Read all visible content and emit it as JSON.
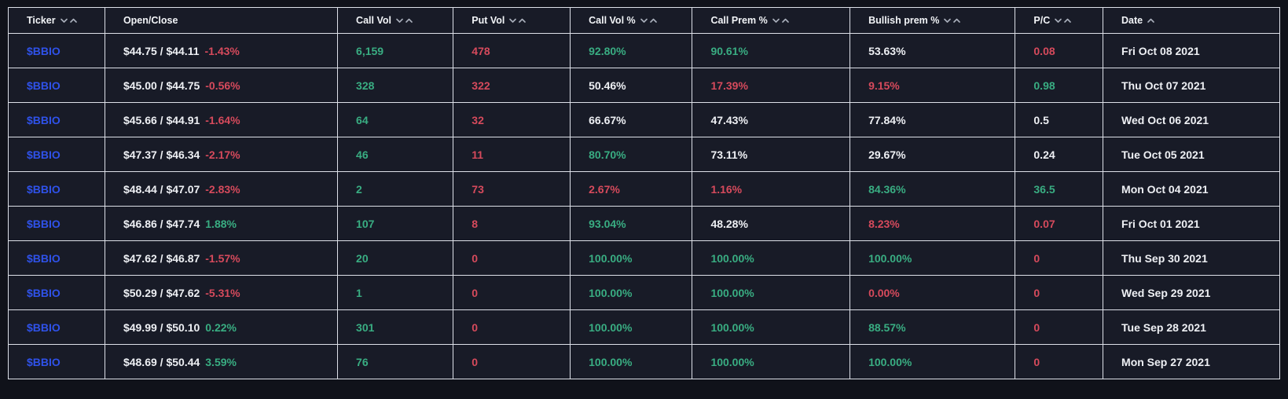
{
  "colors": {
    "green": "#39ad82",
    "red": "#d64a5c",
    "blue": "#2f52ea",
    "white": "#eef0f4",
    "cell_background": "#181b27",
    "page_background": "#10121a",
    "border": "#dde0e8"
  },
  "table": {
    "columns": [
      {
        "id": "ticker",
        "label": "Ticker",
        "sort_icons": [
          "chevron-down-icon",
          "chevron-up-icon"
        ],
        "width": "7.6%"
      },
      {
        "id": "open_close",
        "label": "Open/Close",
        "sort_icons": [],
        "width": "18.3%"
      },
      {
        "id": "call_vol",
        "label": "Call Vol",
        "sort_icons": [
          "chevron-down-icon",
          "chevron-up-icon"
        ],
        "width": "9.1%"
      },
      {
        "id": "put_vol",
        "label": "Put Vol",
        "sort_icons": [
          "chevron-down-icon",
          "chevron-up-icon"
        ],
        "width": "9.2%"
      },
      {
        "id": "call_vol_pct",
        "label": "Call Vol %",
        "sort_icons": [
          "chevron-down-icon",
          "chevron-up-icon"
        ],
        "width": "9.6%"
      },
      {
        "id": "call_prem_pct",
        "label": "Call Prem %",
        "sort_icons": [
          "chevron-down-icon",
          "chevron-up-icon"
        ],
        "width": "12.4%"
      },
      {
        "id": "bullish_prem_pct",
        "label": "Bullish prem %",
        "sort_icons": [
          "chevron-down-icon",
          "chevron-up-icon"
        ],
        "width": "13.0%"
      },
      {
        "id": "pc",
        "label": "P/C",
        "sort_icons": [
          "chevron-down-icon",
          "chevron-up-icon"
        ],
        "width": "6.9%"
      },
      {
        "id": "date",
        "label": "Date",
        "sort_icons": [
          "chevron-up-icon"
        ],
        "width": "13.9%"
      }
    ],
    "rows": [
      {
        "cells": [
          {
            "parts": [
              {
                "text": "$BBIO",
                "color": "blue"
              }
            ]
          },
          {
            "parts": [
              {
                "text": "$44.75 / $44.11",
                "color": "white"
              },
              {
                "text": "-1.43%",
                "color": "red"
              }
            ]
          },
          {
            "parts": [
              {
                "text": "6,159",
                "color": "green"
              }
            ]
          },
          {
            "parts": [
              {
                "text": "478",
                "color": "red"
              }
            ]
          },
          {
            "parts": [
              {
                "text": "92.80%",
                "color": "green"
              }
            ]
          },
          {
            "parts": [
              {
                "text": "90.61%",
                "color": "green"
              }
            ]
          },
          {
            "parts": [
              {
                "text": "53.63%",
                "color": "white"
              }
            ]
          },
          {
            "parts": [
              {
                "text": "0.08",
                "color": "red"
              }
            ]
          },
          {
            "parts": [
              {
                "text": "Fri Oct 08 2021",
                "color": "white"
              }
            ]
          }
        ]
      },
      {
        "cells": [
          {
            "parts": [
              {
                "text": "$BBIO",
                "color": "blue"
              }
            ]
          },
          {
            "parts": [
              {
                "text": "$45.00 / $44.75",
                "color": "white"
              },
              {
                "text": "-0.56%",
                "color": "red"
              }
            ]
          },
          {
            "parts": [
              {
                "text": "328",
                "color": "green"
              }
            ]
          },
          {
            "parts": [
              {
                "text": "322",
                "color": "red"
              }
            ]
          },
          {
            "parts": [
              {
                "text": "50.46%",
                "color": "white"
              }
            ]
          },
          {
            "parts": [
              {
                "text": "17.39%",
                "color": "red"
              }
            ]
          },
          {
            "parts": [
              {
                "text": "9.15%",
                "color": "red"
              }
            ]
          },
          {
            "parts": [
              {
                "text": "0.98",
                "color": "green"
              }
            ]
          },
          {
            "parts": [
              {
                "text": "Thu Oct 07 2021",
                "color": "white"
              }
            ]
          }
        ]
      },
      {
        "cells": [
          {
            "parts": [
              {
                "text": "$BBIO",
                "color": "blue"
              }
            ]
          },
          {
            "parts": [
              {
                "text": "$45.66 / $44.91",
                "color": "white"
              },
              {
                "text": "-1.64%",
                "color": "red"
              }
            ]
          },
          {
            "parts": [
              {
                "text": "64",
                "color": "green"
              }
            ]
          },
          {
            "parts": [
              {
                "text": "32",
                "color": "red"
              }
            ]
          },
          {
            "parts": [
              {
                "text": "66.67%",
                "color": "white"
              }
            ]
          },
          {
            "parts": [
              {
                "text": "47.43%",
                "color": "white"
              }
            ]
          },
          {
            "parts": [
              {
                "text": "77.84%",
                "color": "white"
              }
            ]
          },
          {
            "parts": [
              {
                "text": "0.5",
                "color": "white"
              }
            ]
          },
          {
            "parts": [
              {
                "text": "Wed Oct 06 2021",
                "color": "white"
              }
            ]
          }
        ]
      },
      {
        "cells": [
          {
            "parts": [
              {
                "text": "$BBIO",
                "color": "blue"
              }
            ]
          },
          {
            "parts": [
              {
                "text": "$47.37 / $46.34",
                "color": "white"
              },
              {
                "text": "-2.17%",
                "color": "red"
              }
            ]
          },
          {
            "parts": [
              {
                "text": "46",
                "color": "green"
              }
            ]
          },
          {
            "parts": [
              {
                "text": "11",
                "color": "red"
              }
            ]
          },
          {
            "parts": [
              {
                "text": "80.70%",
                "color": "green"
              }
            ]
          },
          {
            "parts": [
              {
                "text": "73.11%",
                "color": "white"
              }
            ]
          },
          {
            "parts": [
              {
                "text": "29.67%",
                "color": "white"
              }
            ]
          },
          {
            "parts": [
              {
                "text": "0.24",
                "color": "white"
              }
            ]
          },
          {
            "parts": [
              {
                "text": "Tue Oct 05 2021",
                "color": "white"
              }
            ]
          }
        ]
      },
      {
        "cells": [
          {
            "parts": [
              {
                "text": "$BBIO",
                "color": "blue"
              }
            ]
          },
          {
            "parts": [
              {
                "text": "$48.44 / $47.07",
                "color": "white"
              },
              {
                "text": "-2.83%",
                "color": "red"
              }
            ]
          },
          {
            "parts": [
              {
                "text": "2",
                "color": "green"
              }
            ]
          },
          {
            "parts": [
              {
                "text": "73",
                "color": "red"
              }
            ]
          },
          {
            "parts": [
              {
                "text": "2.67%",
                "color": "red"
              }
            ]
          },
          {
            "parts": [
              {
                "text": "1.16%",
                "color": "red"
              }
            ]
          },
          {
            "parts": [
              {
                "text": "84.36%",
                "color": "green"
              }
            ]
          },
          {
            "parts": [
              {
                "text": "36.5",
                "color": "green"
              }
            ]
          },
          {
            "parts": [
              {
                "text": "Mon Oct 04 2021",
                "color": "white"
              }
            ]
          }
        ]
      },
      {
        "cells": [
          {
            "parts": [
              {
                "text": "$BBIO",
                "color": "blue"
              }
            ]
          },
          {
            "parts": [
              {
                "text": "$46.86 / $47.74",
                "color": "white"
              },
              {
                "text": "1.88%",
                "color": "green"
              }
            ]
          },
          {
            "parts": [
              {
                "text": "107",
                "color": "green"
              }
            ]
          },
          {
            "parts": [
              {
                "text": "8",
                "color": "red"
              }
            ]
          },
          {
            "parts": [
              {
                "text": "93.04%",
                "color": "green"
              }
            ]
          },
          {
            "parts": [
              {
                "text": "48.28%",
                "color": "white"
              }
            ]
          },
          {
            "parts": [
              {
                "text": "8.23%",
                "color": "red"
              }
            ]
          },
          {
            "parts": [
              {
                "text": "0.07",
                "color": "red"
              }
            ]
          },
          {
            "parts": [
              {
                "text": "Fri Oct 01 2021",
                "color": "white"
              }
            ]
          }
        ]
      },
      {
        "cells": [
          {
            "parts": [
              {
                "text": "$BBIO",
                "color": "blue"
              }
            ]
          },
          {
            "parts": [
              {
                "text": "$47.62 / $46.87",
                "color": "white"
              },
              {
                "text": "-1.57%",
                "color": "red"
              }
            ]
          },
          {
            "parts": [
              {
                "text": "20",
                "color": "green"
              }
            ]
          },
          {
            "parts": [
              {
                "text": "0",
                "color": "red"
              }
            ]
          },
          {
            "parts": [
              {
                "text": "100.00%",
                "color": "green"
              }
            ]
          },
          {
            "parts": [
              {
                "text": "100.00%",
                "color": "green"
              }
            ]
          },
          {
            "parts": [
              {
                "text": "100.00%",
                "color": "green"
              }
            ]
          },
          {
            "parts": [
              {
                "text": "0",
                "color": "red"
              }
            ]
          },
          {
            "parts": [
              {
                "text": "Thu Sep 30 2021",
                "color": "white"
              }
            ]
          }
        ]
      },
      {
        "cells": [
          {
            "parts": [
              {
                "text": "$BBIO",
                "color": "blue"
              }
            ]
          },
          {
            "parts": [
              {
                "text": "$50.29 / $47.62",
                "color": "white"
              },
              {
                "text": "-5.31%",
                "color": "red"
              }
            ]
          },
          {
            "parts": [
              {
                "text": "1",
                "color": "green"
              }
            ]
          },
          {
            "parts": [
              {
                "text": "0",
                "color": "red"
              }
            ]
          },
          {
            "parts": [
              {
                "text": "100.00%",
                "color": "green"
              }
            ]
          },
          {
            "parts": [
              {
                "text": "100.00%",
                "color": "green"
              }
            ]
          },
          {
            "parts": [
              {
                "text": "0.00%",
                "color": "red"
              }
            ]
          },
          {
            "parts": [
              {
                "text": "0",
                "color": "red"
              }
            ]
          },
          {
            "parts": [
              {
                "text": "Wed Sep 29 2021",
                "color": "white"
              }
            ]
          }
        ]
      },
      {
        "cells": [
          {
            "parts": [
              {
                "text": "$BBIO",
                "color": "blue"
              }
            ]
          },
          {
            "parts": [
              {
                "text": "$49.99 / $50.10",
                "color": "white"
              },
              {
                "text": "0.22%",
                "color": "green"
              }
            ]
          },
          {
            "parts": [
              {
                "text": "301",
                "color": "green"
              }
            ]
          },
          {
            "parts": [
              {
                "text": "0",
                "color": "red"
              }
            ]
          },
          {
            "parts": [
              {
                "text": "100.00%",
                "color": "green"
              }
            ]
          },
          {
            "parts": [
              {
                "text": "100.00%",
                "color": "green"
              }
            ]
          },
          {
            "parts": [
              {
                "text": "88.57%",
                "color": "green"
              }
            ]
          },
          {
            "parts": [
              {
                "text": "0",
                "color": "red"
              }
            ]
          },
          {
            "parts": [
              {
                "text": "Tue Sep 28 2021",
                "color": "white"
              }
            ]
          }
        ]
      },
      {
        "cells": [
          {
            "parts": [
              {
                "text": "$BBIO",
                "color": "blue"
              }
            ]
          },
          {
            "parts": [
              {
                "text": "$48.69 / $50.44",
                "color": "white"
              },
              {
                "text": "3.59%",
                "color": "green"
              }
            ]
          },
          {
            "parts": [
              {
                "text": "76",
                "color": "green"
              }
            ]
          },
          {
            "parts": [
              {
                "text": "0",
                "color": "red"
              }
            ]
          },
          {
            "parts": [
              {
                "text": "100.00%",
                "color": "green"
              }
            ]
          },
          {
            "parts": [
              {
                "text": "100.00%",
                "color": "green"
              }
            ]
          },
          {
            "parts": [
              {
                "text": "100.00%",
                "color": "green"
              }
            ]
          },
          {
            "parts": [
              {
                "text": "0",
                "color": "red"
              }
            ]
          },
          {
            "parts": [
              {
                "text": "Mon Sep 27 2021",
                "color": "white"
              }
            ]
          }
        ]
      }
    ]
  }
}
